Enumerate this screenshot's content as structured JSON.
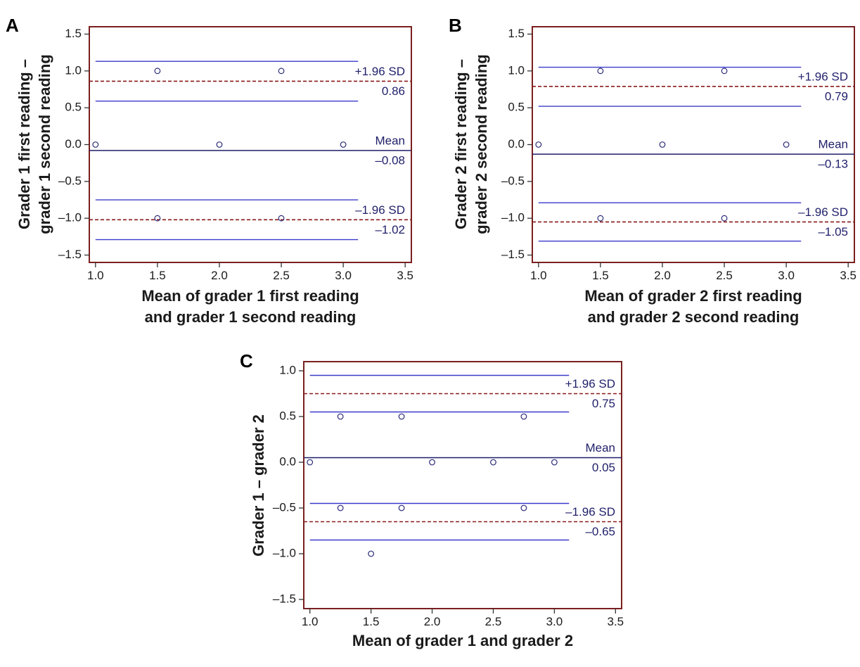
{
  "chart_data": [
    {
      "panel": "A",
      "type": "scatter",
      "xlabel": [
        "Mean of grader 1 first reading",
        "and grader 1 second reading"
      ],
      "ylabel": [
        "Grader 1 first reading –",
        "grader 1 second reading"
      ],
      "xlim": [
        0.95,
        3.55
      ],
      "ylim": [
        -1.6,
        1.6
      ],
      "xticks": [
        "1.0",
        "1.5",
        "2.0",
        "2.5",
        "3.0",
        "3.5"
      ],
      "yticks": [
        "1.5",
        "1.0",
        "0.5",
        "0.0",
        "–0.5",
        "–1.0",
        "–1.5"
      ],
      "points": [
        {
          "x": 1.0,
          "y": 0.0
        },
        {
          "x": 1.5,
          "y": 1.0
        },
        {
          "x": 2.0,
          "y": 0.0
        },
        {
          "x": 2.5,
          "y": 1.0
        },
        {
          "x": 3.0,
          "y": 0.0
        },
        {
          "x": 1.5,
          "y": -1.0
        },
        {
          "x": 2.5,
          "y": -1.0
        }
      ],
      "mean": -0.08,
      "upper_loa": 0.86,
      "lower_loa": -1.02,
      "ci_lines": [
        1.13,
        0.59,
        -0.75,
        -1.29
      ],
      "ci_x_end": 3.12,
      "labels": {
        "mean": "Mean",
        "mean_value": "–0.08",
        "upper": "+1.96 SD",
        "upper_value": "0.86",
        "lower": "–1.96 SD",
        "lower_value": "–1.02"
      }
    },
    {
      "panel": "B",
      "type": "scatter",
      "xlabel": [
        "Mean of grader 2 first reading",
        "and grader 2 second reading"
      ],
      "ylabel": [
        "Grader 2 first reading –",
        "grader 2 second reading"
      ],
      "xlim": [
        0.95,
        3.55
      ],
      "ylim": [
        -1.6,
        1.6
      ],
      "xticks": [
        "1.0",
        "1.5",
        "2.0",
        "2.5",
        "3.0",
        "3.5"
      ],
      "yticks": [
        "1.5",
        "1.0",
        "0.5",
        "0.0",
        "–0.5",
        "–1.0",
        "–1.5"
      ],
      "points": [
        {
          "x": 1.0,
          "y": 0.0
        },
        {
          "x": 1.5,
          "y": 1.0
        },
        {
          "x": 2.0,
          "y": 0.0
        },
        {
          "x": 2.5,
          "y": 1.0
        },
        {
          "x": 3.0,
          "y": 0.0
        },
        {
          "x": 1.5,
          "y": -1.0
        },
        {
          "x": 2.5,
          "y": -1.0
        }
      ],
      "mean": -0.13,
      "upper_loa": 0.79,
      "lower_loa": -1.05,
      "ci_lines": [
        1.05,
        0.52,
        -0.79,
        -1.31
      ],
      "ci_x_end": 3.12,
      "labels": {
        "mean": "Mean",
        "mean_value": "–0.13",
        "upper": "+1.96 SD",
        "upper_value": "0.79",
        "lower": "–1.96 SD",
        "lower_value": "–1.05"
      }
    },
    {
      "panel": "C",
      "type": "scatter",
      "xlabel": [
        "Mean of grader 1 and grader 2"
      ],
      "ylabel": [
        "Grader 1 – grader 2"
      ],
      "xlim": [
        0.95,
        3.55
      ],
      "ylim": [
        -1.6,
        1.1
      ],
      "xticks": [
        "1.0",
        "1.5",
        "2.0",
        "2.5",
        "3.0",
        "3.5"
      ],
      "yticks": [
        "1.0",
        "0.5",
        "0.0",
        "–0.5",
        "–1.0",
        "–1.5"
      ],
      "points": [
        {
          "x": 1.0,
          "y": 0.0
        },
        {
          "x": 1.25,
          "y": 0.5
        },
        {
          "x": 1.75,
          "y": 0.5
        },
        {
          "x": 2.75,
          "y": 0.5
        },
        {
          "x": 2.0,
          "y": 0.0
        },
        {
          "x": 2.5,
          "y": 0.0
        },
        {
          "x": 3.0,
          "y": 0.0
        },
        {
          "x": 1.25,
          "y": -0.5
        },
        {
          "x": 1.75,
          "y": -0.5
        },
        {
          "x": 2.75,
          "y": -0.5
        },
        {
          "x": 1.5,
          "y": -1.0
        }
      ],
      "mean": 0.05,
      "upper_loa": 0.75,
      "lower_loa": -0.65,
      "ci_lines": [
        0.95,
        0.55,
        -0.45,
        -0.85
      ],
      "ci_x_end": 3.12,
      "labels": {
        "mean": "Mean",
        "mean_value": "0.05",
        "upper": "+1.96 SD",
        "upper_value": "0.75",
        "lower": "–1.96 SD",
        "lower_value": "–0.65"
      }
    }
  ],
  "colors": {
    "frame": "#7a1f1f",
    "points": "#2b2b7a",
    "ci_line": "#3a3acc",
    "mean_line": "#1f1f6a",
    "loa_line": "#8b1a1a",
    "label_text": "#1f1f6a"
  }
}
